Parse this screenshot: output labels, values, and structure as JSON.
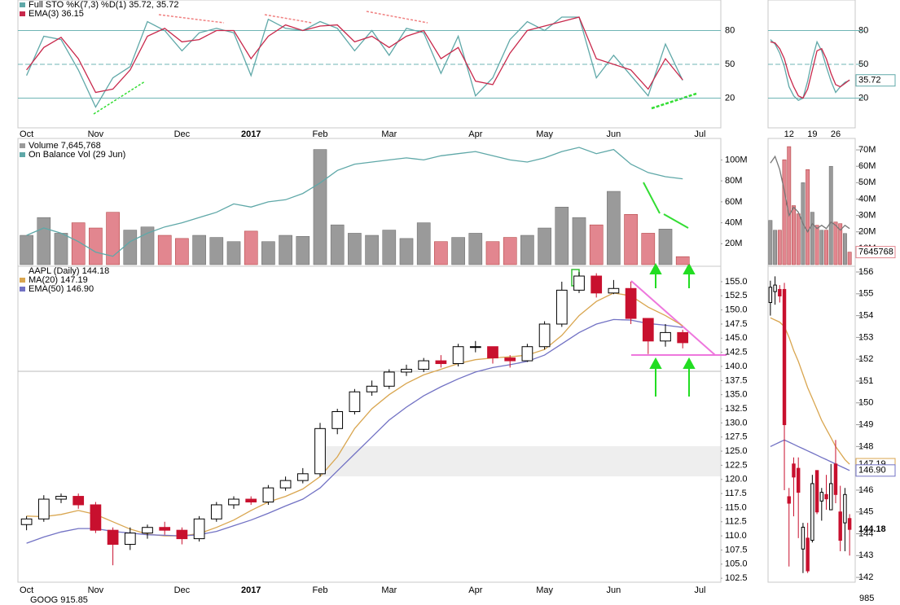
{
  "chart_data": [
    {
      "type": "line",
      "categories": [
        "Oct",
        null,
        null,
        null,
        "Nov",
        null,
        null,
        null,
        null,
        "Dec",
        null,
        null,
        null,
        "2017",
        null,
        null,
        null,
        "Feb",
        null,
        null,
        null,
        "Mar",
        null,
        null,
        null,
        null,
        "Apr",
        null,
        null,
        null,
        "May",
        null,
        null,
        null,
        "Jun",
        null,
        null,
        null,
        null,
        "Jul"
      ],
      "series": [
        {
          "name": "Full STO %K(7,3) %D(1) 35.72, 35.72",
          "color": "#5fa8a8",
          "values": [
            40,
            75,
            72,
            45,
            12,
            38,
            48,
            88,
            80,
            62,
            78,
            82,
            78,
            40,
            90,
            82,
            80,
            88,
            82,
            62,
            80,
            58,
            82,
            78,
            42,
            75,
            22,
            38,
            72,
            88,
            80,
            92,
            92,
            38,
            58,
            40,
            22,
            68,
            35.72,
            null
          ]
        },
        {
          "name": "EMA(3) 36.15",
          "color": "#c8284b",
          "values": [
            45,
            65,
            74,
            55,
            25,
            28,
            45,
            75,
            82,
            70,
            72,
            80,
            80,
            55,
            75,
            85,
            80,
            84,
            85,
            70,
            75,
            65,
            75,
            80,
            55,
            65,
            35,
            32,
            60,
            80,
            84,
            88,
            92,
            55,
            50,
            45,
            28,
            55,
            36.15,
            null
          ]
        }
      ],
      "ylim": [
        -5,
        105
      ],
      "yticks": [
        20,
        50,
        80
      ],
      "grid": true
    },
    {
      "type": "bar",
      "series": [
        {
          "name": "Volume 7,645,768",
          "up_color": "#9a9a9a",
          "down_color": "#e2868f",
          "values": [
            28,
            45,
            30,
            40,
            35,
            50,
            33,
            36,
            28,
            25,
            28,
            26,
            22,
            32,
            22,
            28,
            27,
            110,
            38,
            30,
            28,
            33,
            25,
            40,
            22,
            26,
            30,
            22,
            26,
            28,
            35,
            55,
            45,
            38,
            70,
            48,
            30,
            34,
            7.645768,
            null
          ]
        },
        {
          "name": "On Balance Vol (29 Jun)",
          "color": "#5fa8a8",
          "values": [
            28,
            35,
            30,
            22,
            12,
            8,
            22,
            30,
            36,
            40,
            45,
            50,
            58,
            55,
            60,
            62,
            68,
            78,
            90,
            96,
            98,
            100,
            102,
            100,
            104,
            106,
            108,
            104,
            100,
            98,
            102,
            108,
            112,
            106,
            110,
            96,
            88,
            84,
            82,
            null
          ]
        }
      ],
      "ylim": [
        0,
        119
      ],
      "yticks": [
        {
          "value": 20,
          "label": "20M"
        },
        {
          "value": 40,
          "label": "40M"
        },
        {
          "value": 60,
          "label": "60M"
        },
        {
          "value": 80,
          "label": "80M"
        },
        {
          "value": 100,
          "label": "100M"
        }
      ]
    },
    {
      "type": "candlestick",
      "title": "AAPL (Daily) 144.18",
      "categories": [
        "Oct",
        null,
        null,
        null,
        "Nov",
        null,
        null,
        null,
        null,
        "Dec",
        null,
        null,
        null,
        "2017",
        null,
        null,
        null,
        "Feb",
        null,
        null,
        null,
        "Mar",
        null,
        null,
        null,
        null,
        "Apr",
        null,
        null,
        null,
        "May",
        null,
        null,
        null,
        "Jun",
        null,
        null,
        null,
        null,
        "Jul"
      ],
      "up_color": "#000000",
      "down_color": "#c8102e",
      "open": [
        112.0,
        113.0,
        116.5,
        117.0,
        115.5,
        111.0,
        108.5,
        110.5,
        111.5,
        111.0,
        109.5,
        113.0,
        115.5,
        116.5,
        116.0,
        118.5,
        119.8,
        121.0,
        129.0,
        132.0,
        135.5,
        136.5,
        139.0,
        139.5,
        141.0,
        140.5,
        143.5,
        143.5,
        141.5,
        141.0,
        143.5,
        147.5,
        153.5,
        156.0,
        153.0,
        153.8,
        148.5,
        144.5,
        146.0,
        null
      ],
      "high": [
        113.5,
        117.2,
        117.5,
        117.5,
        116,
        111.5,
        111.5,
        112,
        112.5,
        111.5,
        113.5,
        116,
        117,
        117,
        119,
        120.5,
        122,
        130,
        132.5,
        136,
        137.5,
        139.5,
        140.3,
        141.5,
        142,
        144,
        144.5,
        143.5,
        142,
        144,
        148,
        155,
        156.7,
        156.5,
        155.3,
        155,
        148.5,
        147.5,
        146.5,
        null
      ],
      "low": [
        111,
        112.5,
        115.8,
        114.8,
        110.5,
        104.8,
        107.5,
        109.5,
        110.2,
        108.5,
        109,
        112.5,
        114.8,
        115.5,
        115.5,
        118,
        119.3,
        120.5,
        128,
        131.5,
        134.8,
        136,
        138.3,
        139,
        139.8,
        140,
        142.5,
        140.5,
        139.8,
        140.8,
        143,
        147,
        153,
        152.2,
        152.8,
        147.5,
        142.2,
        143.5,
        143.2,
        null
      ],
      "close": [
        113.0,
        116.5,
        117.0,
        115.5,
        111.0,
        108.5,
        110.5,
        111.5,
        111.0,
        109.5,
        113.0,
        115.5,
        116.5,
        116.0,
        118.5,
        119.8,
        121.0,
        129.0,
        132.0,
        135.5,
        136.5,
        139.0,
        139.5,
        141.0,
        140.5,
        143.5,
        143.5,
        141.5,
        141.0,
        143.5,
        147.5,
        153.5,
        156.0,
        153.0,
        153.8,
        148.5,
        144.5,
        146.0,
        144.2,
        null
      ],
      "series": [
        {
          "name": "MA(20) 147.19",
          "color": "#d9a650",
          "values": [
            113.5,
            113.4,
            113.8,
            114.5,
            113.8,
            112.5,
            111.2,
            110.3,
            110,
            110,
            110.4,
            111.5,
            112.8,
            114.5,
            116,
            117,
            118.3,
            120.5,
            124,
            129,
            132.5,
            135,
            137,
            138.5,
            139.5,
            140.5,
            141.2,
            141.5,
            141.7,
            142,
            143,
            145.5,
            149,
            151.5,
            153,
            152.5,
            150.5,
            149,
            147.19,
            null
          ]
        },
        {
          "name": "EMA(50) 146.90",
          "color": "#7272c4",
          "values": [
            108.7,
            109.8,
            110.7,
            111.3,
            111.3,
            110.8,
            110.5,
            110.2,
            110.1,
            110,
            110.2,
            110.8,
            111.8,
            112.8,
            114,
            115.3,
            116.5,
            118.5,
            121.5,
            124.5,
            127.5,
            130.5,
            132.8,
            134.8,
            136.4,
            137.8,
            139,
            139.8,
            140.3,
            140.9,
            142,
            144,
            146,
            147.5,
            148.3,
            148.2,
            147.6,
            147.3,
            146.9,
            null
          ]
        }
      ],
      "ylim": [
        101.8,
        157.3
      ],
      "yticks": [
        102.5,
        {
          "value": 105,
          "label": "105.0"
        },
        107.5,
        {
          "value": 110,
          "label": "110.0"
        },
        112.5,
        {
          "value": 115,
          "label": "115.0"
        },
        117.5,
        {
          "value": 120,
          "label": "120.0"
        },
        122.5,
        {
          "value": 125,
          "label": "125.0"
        },
        127.5,
        {
          "value": 130,
          "label": "130.0"
        },
        132.5,
        {
          "value": 135,
          "label": "135.0"
        },
        137.5,
        {
          "value": 140,
          "label": "140.0"
        },
        142.5,
        {
          "value": 145,
          "label": "145.0"
        },
        147.5,
        {
          "value": 150,
          "label": "150.0"
        },
        152.5,
        {
          "value": 155,
          "label": "155.0"
        }
      ]
    },
    {
      "type": "line",
      "categories": [
        null,
        null,
        null,
        null,
        "12",
        null,
        null,
        null,
        null,
        "19",
        null,
        null,
        null,
        null,
        "26",
        null,
        null,
        null
      ],
      "series": [
        {
          "color": "#5fa8a8",
          "end_label": "35.72",
          "values": [
            72,
            68,
            60,
            48,
            30,
            22,
            18,
            20,
            35,
            55,
            70,
            62,
            48,
            35,
            25,
            30,
            34,
            35.72
          ]
        },
        {
          "color": "#c8284b",
          "values": [
            70,
            69,
            64,
            55,
            40,
            30,
            22,
            20,
            28,
            45,
            62,
            64,
            55,
            42,
            32,
            30,
            33,
            36.15
          ]
        }
      ],
      "ylim": [
        -5,
        105
      ],
      "yticks": [
        20,
        50,
        80
      ],
      "grid": true
    },
    {
      "type": "bar",
      "series": [
        {
          "up_color": "#9a9a9a",
          "down_color": "#e2868f",
          "end_label": "7645768",
          "values": [
            27,
            21,
            21,
            64,
            72,
            36,
            31,
            50,
            58,
            32,
            24,
            21,
            21,
            60,
            26,
            25,
            19,
            7.645768
          ]
        },
        {
          "color": "#777777",
          "values": [
            62,
            66,
            58,
            45,
            30,
            35,
            32,
            25,
            20,
            25,
            22,
            24,
            22,
            26,
            24,
            21,
            24,
            22
          ]
        }
      ],
      "ylim": [
        0,
        76
      ],
      "yticks": [
        {
          "value": 10,
          "label": "10M"
        },
        {
          "value": 20,
          "label": "20M"
        },
        {
          "value": 30,
          "label": "30M"
        },
        {
          "value": 40,
          "label": "40M"
        },
        {
          "value": 50,
          "label": "50M"
        },
        {
          "value": 60,
          "label": "60M"
        },
        {
          "value": 70,
          "label": "70M"
        }
      ]
    },
    {
      "type": "candlestick",
      "up_color": "#000000",
      "down_color": "#c8102e",
      "open": [
        154.6,
        155.1,
        155.2,
        155.2,
        145.7,
        147.2,
        147,
        143.3,
        143.8,
        143.7,
        146.9,
        145.5,
        145.8,
        145.1,
        147.2,
        145,
        144.5,
        144.7
      ],
      "high": [
        155.6,
        155.8,
        155.4,
        155.5,
        146.1,
        147.5,
        147.5,
        144.5,
        144.5,
        146.7,
        146.9,
        146.1,
        146.7,
        147.2,
        148.3,
        146.2,
        146.1,
        144.9
      ],
      "low": [
        154,
        154.5,
        154.6,
        146,
        142.5,
        144.8,
        143.8,
        142.2,
        142.2,
        143.6,
        144.9,
        144.6,
        145.1,
        145.1,
        145.4,
        143.2,
        143.2,
        143
      ],
      "close": [
        155.3,
        155.4,
        154.9,
        149,
        145.4,
        146.6,
        145.9,
        144.3,
        142.3,
        146.3,
        145,
        145.9,
        145.6,
        146.3,
        145.8,
        143.7,
        145.8,
        144.2
      ],
      "series": [
        {
          "color": "#d9a650",
          "end_label": "147.19",
          "values": [
            153.9,
            153.8,
            153.7,
            153.5,
            153,
            152.4,
            151.9,
            151.3,
            150.7,
            150.2,
            149.7,
            149.2,
            148.8,
            148.4,
            148,
            147.7,
            147.4,
            147.19
          ]
        },
        {
          "color": "#7272c4",
          "end_label": "146.90",
          "values": [
            148.0,
            148.1,
            148.2,
            148.3,
            148.2,
            148.1,
            148,
            147.9,
            147.8,
            147.7,
            147.6,
            147.5,
            147.4,
            147.3,
            147.2,
            147.1,
            147.0,
            146.9
          ]
        }
      ],
      "close_label": "144.18",
      "ylim": [
        141.78,
        156.15
      ],
      "yticks": [
        142,
        143,
        144,
        145,
        146,
        147,
        148,
        149,
        150,
        151,
        152,
        153,
        154,
        155,
        156
      ]
    }
  ],
  "footer": {
    "title": "GOOG 915.85",
    "ytick": "985"
  }
}
